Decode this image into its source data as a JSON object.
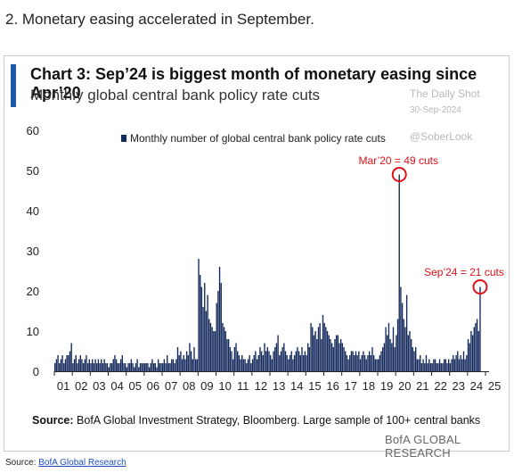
{
  "heading": "2. Monetary easing accelerated in September.",
  "watermark": {
    "line1": "The Daily Shot",
    "line2": "30-Sep-2024",
    "line3": "@SoberLook"
  },
  "source_prefix": "Source:",
  "source_text": "BofA Global Investment Strategy, Bloomberg.  Large sample of 100+ central banks",
  "brand": "BofA GLOBAL RESEARCH",
  "credit": {
    "prefix": "Source:",
    "link": "BofA Global Research"
  },
  "colors": {
    "bar": "#142a5c",
    "accent": "#1a5aa8",
    "annotation": "#e0101a"
  },
  "chart_data": {
    "type": "bar",
    "title": "Chart 3: Sep’24 is biggest month of monetary easing since Apr’20",
    "subtitle": "Monthly global central bank policy rate cuts",
    "legend": "Monthly number of global central bank policy rate cuts",
    "legend_position": "top-center",
    "xlabel": "",
    "ylabel": "",
    "ylim": [
      0,
      60
    ],
    "yticks": [
      0,
      10,
      20,
      30,
      40,
      50,
      60
    ],
    "xticks": [
      "01",
      "02",
      "03",
      "04",
      "05",
      "06",
      "07",
      "08",
      "09",
      "10",
      "11",
      "12",
      "13",
      "14",
      "15",
      "16",
      "17",
      "18",
      "19",
      "20",
      "21",
      "22",
      "23",
      "24",
      "25"
    ],
    "start": "2001-01",
    "end": "2024-09",
    "values": [
      2,
      3,
      4,
      2,
      3,
      4,
      2,
      3,
      4,
      4,
      5,
      7,
      2,
      3,
      4,
      2,
      3,
      4,
      3,
      2,
      3,
      4,
      2,
      3,
      2,
      3,
      2,
      3,
      2,
      3,
      2,
      3,
      2,
      3,
      2,
      2,
      1,
      2,
      2,
      3,
      4,
      3,
      2,
      2,
      3,
      4,
      2,
      2,
      1,
      2,
      2,
      3,
      2,
      1,
      2,
      3,
      1,
      2,
      2,
      2,
      2,
      2,
      2,
      1,
      2,
      3,
      2,
      2,
      1,
      3,
      2,
      2,
      2,
      3,
      2,
      4,
      2,
      2,
      3,
      3,
      2,
      3,
      6,
      4,
      5,
      3,
      4,
      3,
      5,
      4,
      7,
      5,
      3,
      6,
      3,
      3,
      28,
      24,
      21,
      16,
      22,
      15,
      19,
      13,
      12,
      11,
      10,
      10,
      17,
      20,
      26,
      22,
      12,
      11,
      10,
      8,
      8,
      6,
      5,
      3,
      6,
      7,
      5,
      4,
      3,
      4,
      3,
      3,
      2,
      3,
      4,
      2,
      3,
      4,
      5,
      3,
      4,
      6,
      5,
      4,
      7,
      5,
      6,
      5,
      4,
      3,
      5,
      6,
      7,
      9,
      4,
      5,
      6,
      7,
      5,
      4,
      3,
      4,
      5,
      3,
      4,
      5,
      6,
      5,
      4,
      6,
      4,
      5,
      4,
      7,
      6,
      12,
      11,
      9,
      10,
      8,
      11,
      12,
      8,
      14,
      12,
      11,
      10,
      9,
      8,
      7,
      6,
      8,
      9,
      9,
      7,
      8,
      7,
      6,
      5,
      4,
      3,
      4,
      5,
      5,
      4,
      5,
      4,
      5,
      3,
      4,
      5,
      4,
      3,
      4,
      5,
      4,
      6,
      4,
      3,
      3,
      3,
      4,
      5,
      6,
      7,
      11,
      9,
      12,
      8,
      7,
      11,
      6,
      9,
      13,
      49,
      21,
      17,
      13,
      11,
      19,
      9,
      10,
      8,
      6,
      5,
      6,
      3,
      3,
      4,
      2,
      3,
      2,
      4,
      2,
      3,
      2,
      2,
      3,
      3,
      2,
      2,
      3,
      2,
      2,
      3,
      3,
      2,
      3,
      2,
      3,
      4,
      3,
      4,
      5,
      3,
      4,
      3,
      5,
      3,
      4,
      8,
      7,
      10,
      9,
      11,
      12,
      13,
      10,
      21
    ],
    "annotations": [
      {
        "label": "Mar’20 = 49 cuts",
        "x": "2020-03",
        "value": 49
      },
      {
        "label": "Sep’24 = 21 cuts",
        "x": "2024-09",
        "value": 21
      }
    ]
  }
}
